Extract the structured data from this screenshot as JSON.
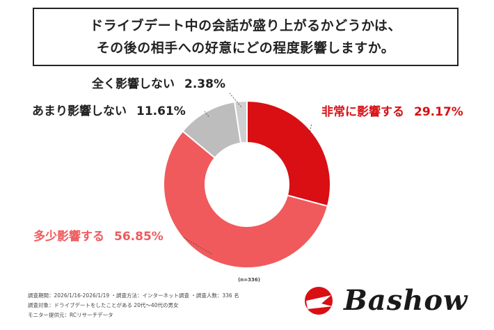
{
  "title": {
    "line1": "ドライブデート中の会話が盛り上がるかどうかは、",
    "line2": "その後の相手への好意にどの程度影響しますか。"
  },
  "chart_data": {
    "type": "pie",
    "donut": true,
    "note": "(n=336)",
    "slices": [
      {
        "label": "非常に影響する",
        "value": 29.17,
        "value_text": "29.17%",
        "color": "#d90f14",
        "label_color": "#d90f14"
      },
      {
        "label": "多少影響する",
        "value": 56.85,
        "value_text": "56.85%",
        "color": "#f05a5c",
        "label_color": "#f05a5c"
      },
      {
        "label": "あまり影響しない",
        "value": 11.61,
        "value_text": "11.61%",
        "color": "#bdbdbd",
        "label_color": "#222222"
      },
      {
        "label": "全く影響しない",
        "value": 2.38,
        "value_text": "2.38%",
        "color": "#cfcfcf",
        "label_color": "#222222"
      }
    ]
  },
  "footer": {
    "line1": "調査期間：2026/1/16-2026/1/19 ・調査方法：インターネット調査 ・調査人数：336 名",
    "line2": "調査対象：ドライブデートをしたことがある 20代～40代の男女",
    "line3": "モニター提供元：RCリサーチデータ"
  },
  "logo": {
    "text": "Bashow",
    "mark_color": "#d90f14"
  }
}
